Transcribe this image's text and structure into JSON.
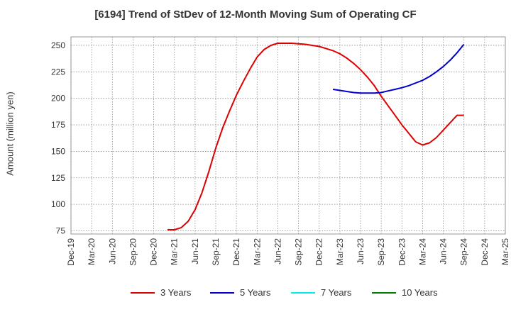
{
  "title": "[6194]  Trend of StDev of 12-Month Moving Sum of Operating CF",
  "chart_data": {
    "type": "line",
    "title": "[6194]  Trend of StDev of 12-Month Moving Sum of Operating CF",
    "ylabel": "Amount (million yen)",
    "xlabel": "",
    "ylim": [
      72,
      258
    ],
    "yticks": [
      75,
      100,
      125,
      150,
      175,
      200,
      225,
      250
    ],
    "grid": true,
    "legend_position": "bottom",
    "x_ticks": [
      "Dec-19",
      "Mar-20",
      "Jun-20",
      "Sep-20",
      "Dec-20",
      "Mar-21",
      "Jun-21",
      "Sep-21",
      "Dec-21",
      "Mar-22",
      "Jun-22",
      "Sep-22",
      "Dec-22",
      "Mar-23",
      "Jun-23",
      "Sep-23",
      "Dec-23",
      "Mar-24",
      "Jun-24",
      "Sep-24",
      "Dec-24",
      "Mar-25"
    ],
    "series": [
      {
        "name": "3 Years",
        "color": "#dd0000",
        "x": [
          "Feb-21",
          "Mar-21",
          "Apr-21",
          "May-21",
          "Jun-21",
          "Jul-21",
          "Aug-21",
          "Sep-21",
          "Oct-21",
          "Nov-21",
          "Dec-21",
          "Jan-22",
          "Feb-22",
          "Mar-22",
          "Apr-22",
          "May-22",
          "Jun-22",
          "Jul-22",
          "Aug-22",
          "Sep-22",
          "Oct-22",
          "Nov-22",
          "Dec-22",
          "Jan-23",
          "Feb-23",
          "Mar-23",
          "Apr-23",
          "May-23",
          "Jun-23",
          "Jul-23",
          "Aug-23",
          "Sep-23",
          "Oct-23",
          "Nov-23",
          "Dec-23",
          "Jan-24",
          "Feb-24",
          "Mar-24",
          "Apr-24",
          "May-24",
          "Jun-24",
          "Jul-24",
          "Aug-24",
          "Sep-24"
        ],
        "values": [
          76,
          76,
          78,
          84,
          95,
          111,
          131,
          153,
          172,
          188,
          203,
          216,
          228,
          239,
          246,
          250,
          252,
          252,
          252,
          251.5,
          251,
          250,
          249,
          247,
          245,
          242,
          238,
          233,
          227,
          220,
          212,
          202,
          193,
          184,
          175,
          167,
          159,
          156,
          158,
          163,
          170,
          177,
          184,
          184
        ]
      },
      {
        "name": "5 Years",
        "color": "#0000cc",
        "x": [
          "Feb-23",
          "Mar-23",
          "Apr-23",
          "May-23",
          "Jun-23",
          "Jul-23",
          "Aug-23",
          "Sep-23",
          "Oct-23",
          "Nov-23",
          "Dec-23",
          "Jan-24",
          "Feb-24",
          "Mar-24",
          "Apr-24",
          "May-24",
          "Jun-24",
          "Jul-24",
          "Aug-24",
          "Sep-24"
        ],
        "values": [
          208.5,
          207.5,
          206.5,
          205.5,
          205,
          205,
          205,
          205.5,
          207,
          208.5,
          210,
          212,
          214.5,
          217,
          220.5,
          225,
          230,
          236,
          243,
          251
        ]
      },
      {
        "name": "7 Years",
        "color": "#00eeee",
        "x": [],
        "values": []
      },
      {
        "name": "10 Years",
        "color": "#008000",
        "x": [],
        "values": []
      }
    ]
  }
}
